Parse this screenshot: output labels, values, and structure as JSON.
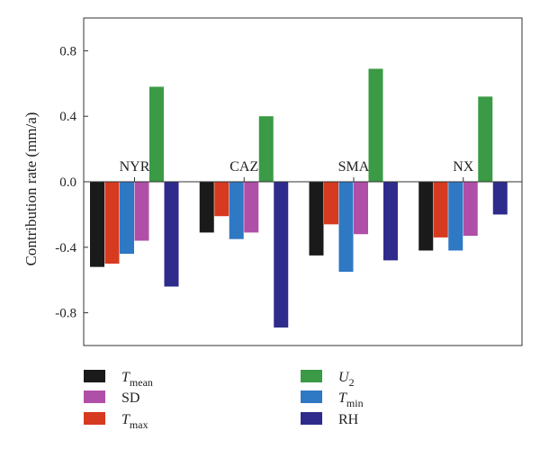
{
  "chart_data": {
    "type": "bar",
    "categories": [
      "NYR",
      "CAZ",
      "SMA",
      "NX"
    ],
    "ylabel": "Contribution rate (mm/a)",
    "ylim": [
      -1.0,
      1.0
    ],
    "yticks": [
      {
        "value": 0.8,
        "label": "0.8"
      },
      {
        "value": 0.4,
        "label": "0.4"
      },
      {
        "value": 0.0,
        "label": "0.0"
      },
      {
        "value": -0.4,
        "label": "-0.4"
      },
      {
        "value": -0.8,
        "label": "-0.8"
      }
    ],
    "grid": false,
    "legend_position": "bottom",
    "series": [
      {
        "key": "tmean",
        "name": "T",
        "sub": "mean",
        "italic": true,
        "color": "#1a1a1a",
        "values": [
          -0.52,
          -0.31,
          -0.45,
          -0.42
        ]
      },
      {
        "key": "tmax",
        "name": "T",
        "sub": "max",
        "italic": true,
        "color": "#d63a1f",
        "values": [
          -0.5,
          -0.21,
          -0.26,
          -0.34
        ]
      },
      {
        "key": "tmin",
        "name": "T",
        "sub": "min",
        "italic": true,
        "color": "#2f78c4",
        "values": [
          -0.44,
          -0.35,
          -0.55,
          -0.42
        ]
      },
      {
        "key": "sd",
        "name": "SD",
        "sub": "",
        "italic": false,
        "color": "#b04fa8",
        "values": [
          -0.36,
          -0.31,
          -0.32,
          -0.33
        ]
      },
      {
        "key": "u2",
        "name": "U",
        "sub": "2",
        "italic": true,
        "color": "#3a9a45",
        "values": [
          0.58,
          0.4,
          0.69,
          0.52
        ]
      },
      {
        "key": "rh",
        "name": "RH",
        "sub": "",
        "italic": false,
        "color": "#2e2b8c",
        "values": [
          -0.64,
          -0.89,
          -0.48,
          -0.2
        ]
      }
    ],
    "legend_order": [
      "tmean",
      "u2",
      "sd",
      "tmin",
      "tmax",
      "rh"
    ]
  }
}
